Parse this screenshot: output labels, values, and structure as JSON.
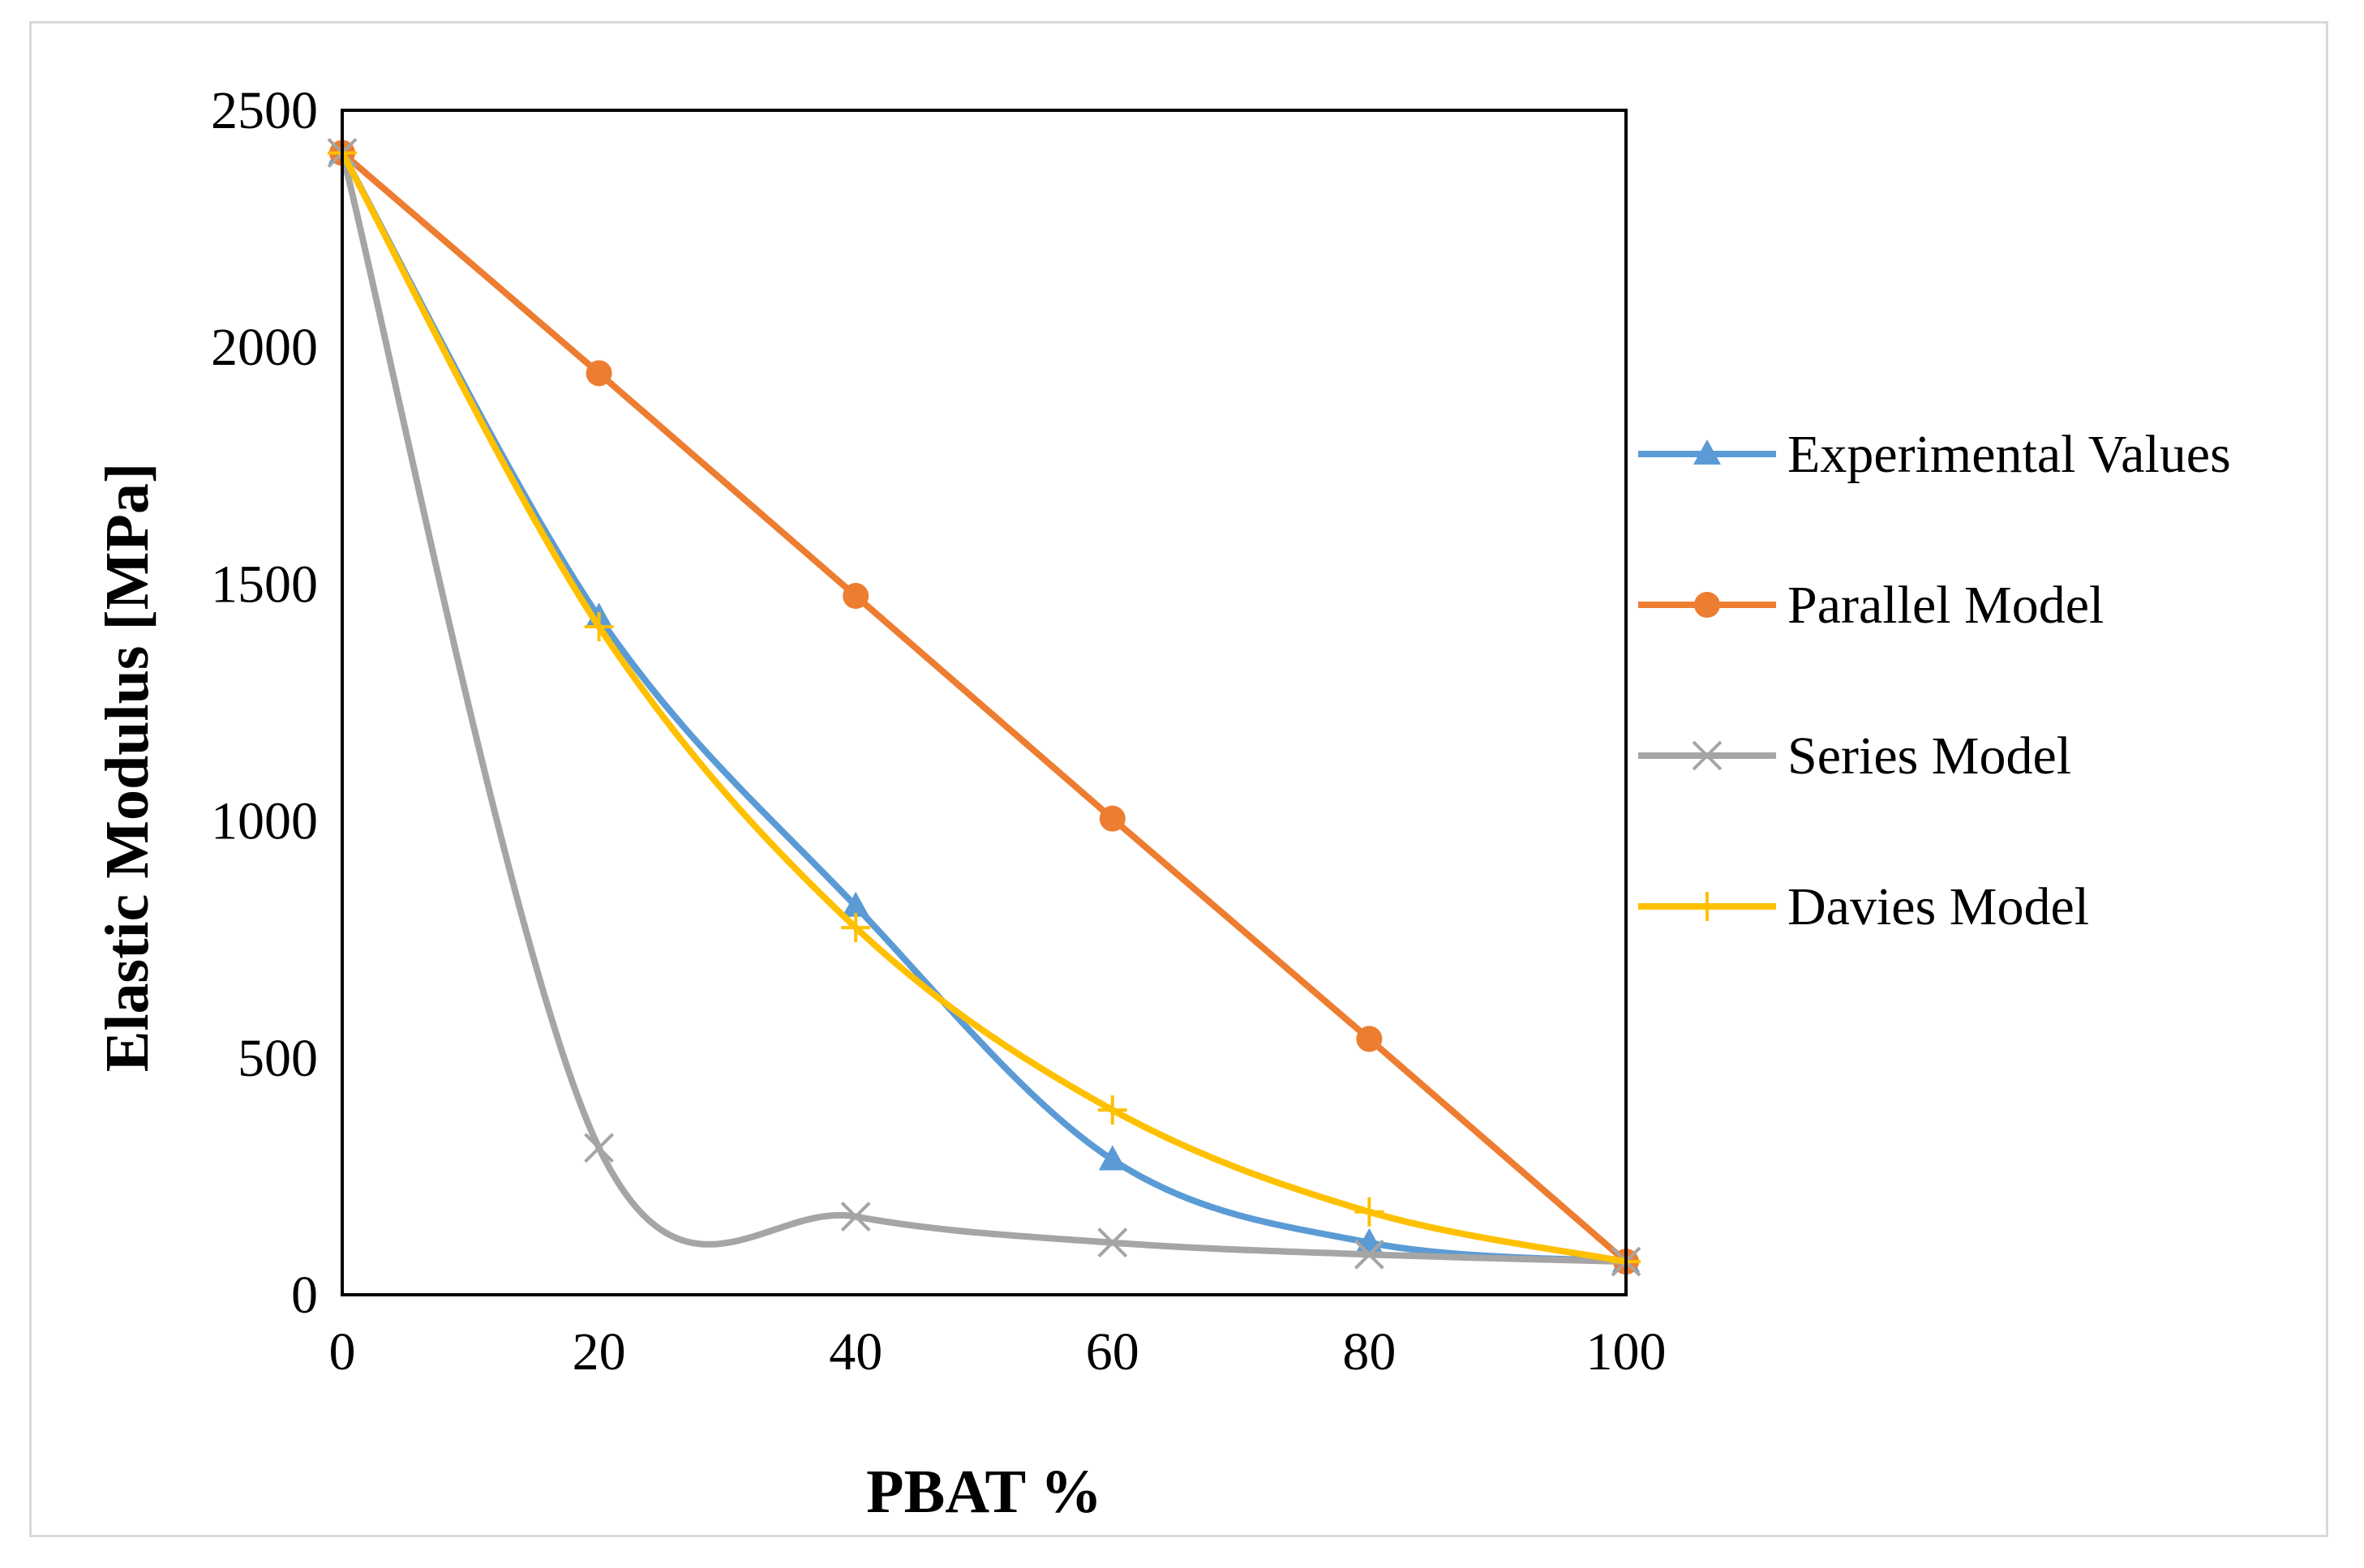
{
  "chart_data": {
    "type": "line",
    "title": "",
    "xlabel": "PBAT %",
    "ylabel": "Elastic Modulus [MPa]",
    "xlim": [
      0,
      100
    ],
    "ylim": [
      0,
      2500
    ],
    "xticks": [
      0,
      20,
      40,
      60,
      80,
      100
    ],
    "yticks": [
      0,
      500,
      1000,
      1500,
      2000,
      2500
    ],
    "grid": false,
    "legend_position": "right",
    "x": [
      0,
      20,
      40,
      60,
      80,
      100
    ],
    "series": [
      {
        "name": "Experimental Values",
        "values": [
          2410,
          1430,
          820,
          285,
          110,
          70
        ],
        "color": "#5b9bd5",
        "marker": "triangle"
      },
      {
        "name": "Parallel Model",
        "values": [
          2410,
          1945,
          1475,
          1005,
          540,
          70
        ],
        "color": "#ed7d31",
        "marker": "circle"
      },
      {
        "name": "Series Model",
        "values": [
          2410,
          310,
          165,
          110,
          85,
          70
        ],
        "color": "#a5a5a5",
        "marker": "x"
      },
      {
        "name": "Davies Model",
        "values": [
          2410,
          1410,
          775,
          390,
          175,
          70
        ],
        "color": "#ffc000",
        "marker": "plus"
      }
    ]
  }
}
